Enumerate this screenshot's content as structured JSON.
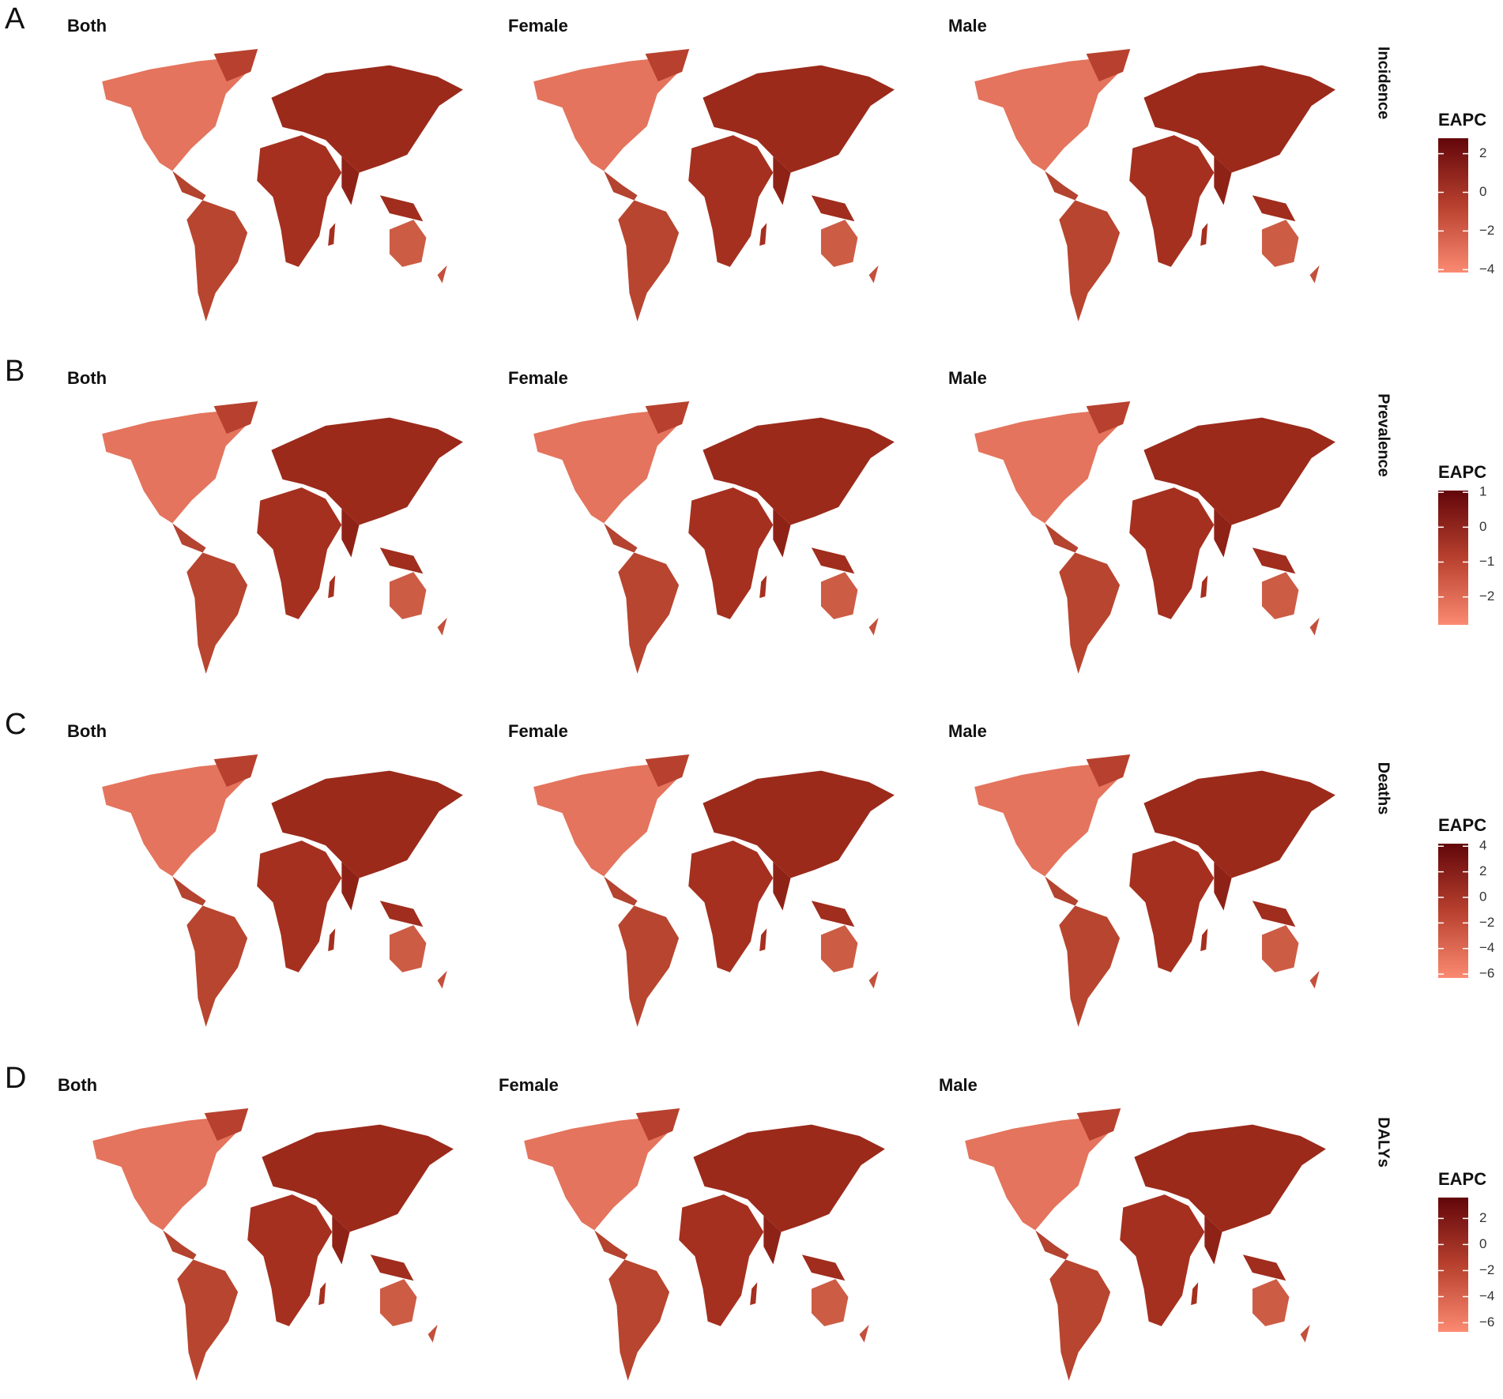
{
  "panels": [
    {
      "letter": "A",
      "measure": "Incidence",
      "maps": [
        "Both",
        "Female",
        "Male"
      ],
      "legend": {
        "title": "EAPC",
        "lim": [
          -4.15,
          2.8
        ],
        "ticks": [
          2,
          0,
          {
            "value": -2,
            "label": "−2"
          },
          {
            "value": -4,
            "label": "−4"
          }
        ]
      }
    },
    {
      "letter": "B",
      "measure": "Prevalence",
      "maps": [
        "Both",
        "Female",
        "Male"
      ],
      "legend": {
        "title": "EAPC",
        "lim": [
          -2.8,
          1.05
        ],
        "ticks": [
          1,
          0,
          {
            "value": -1,
            "label": "−1"
          },
          {
            "value": -2,
            "label": "−2"
          }
        ]
      }
    },
    {
      "letter": "C",
      "measure": "Deaths",
      "maps": [
        "Both",
        "Female",
        "Male"
      ],
      "legend": {
        "title": "EAPC",
        "lim": [
          -6.3,
          4.2
        ],
        "ticks": [
          4,
          2,
          0,
          {
            "value": -2,
            "label": "−2"
          },
          {
            "value": -4,
            "label": "−4"
          },
          {
            "value": -6,
            "label": "−6"
          }
        ]
      }
    },
    {
      "letter": "D",
      "measure": "DALYs",
      "maps": [
        "Both",
        "Female",
        "Male"
      ],
      "legend": {
        "title": "EAPC",
        "lim": [
          -6.7,
          3.6
        ],
        "ticks": [
          2,
          0,
          {
            "value": -2,
            "label": "−2"
          },
          {
            "value": -4,
            "label": "−4"
          },
          {
            "value": -6,
            "label": "−6"
          }
        ]
      }
    }
  ]
}
